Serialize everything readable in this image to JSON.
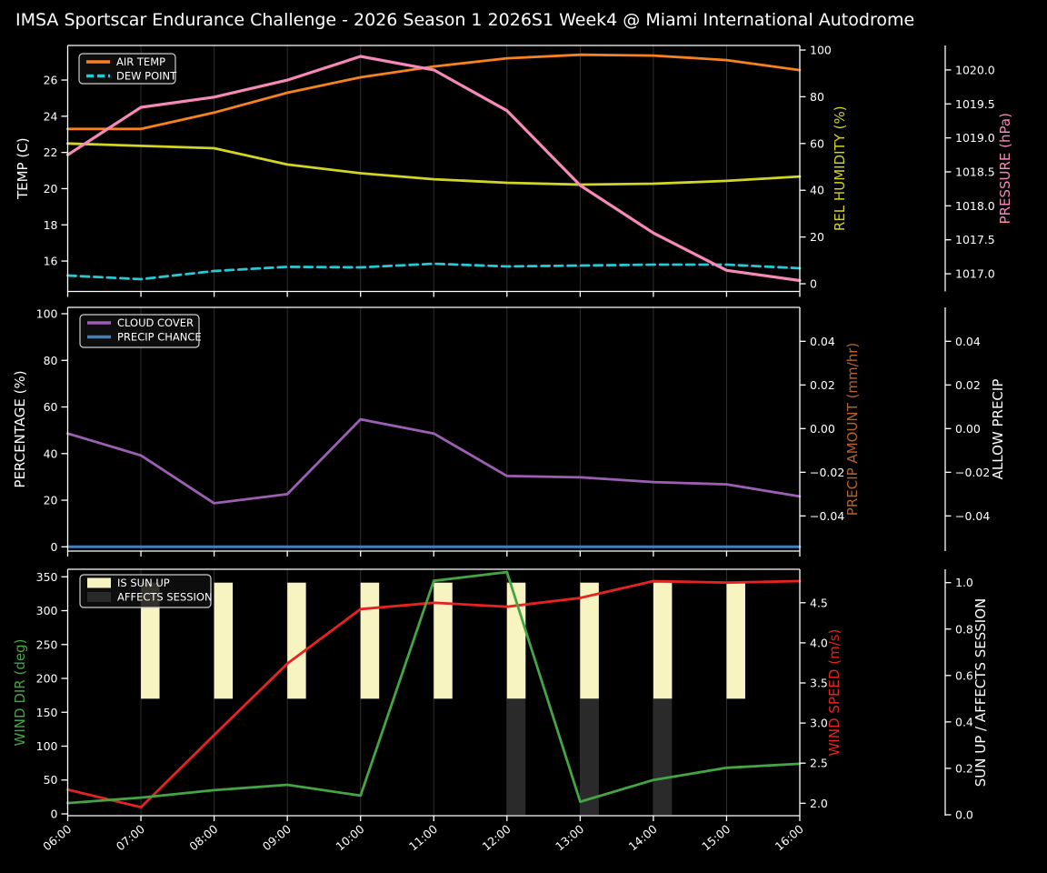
{
  "title": "IMSA Sportscar Endurance Challenge - 2026 Season 1 2026S1 Week4 @ Miami International Autodrome",
  "colors": {
    "background": "#000000",
    "text": "#ffffff",
    "grid": "#2f2f2f",
    "spine": "#ffffff",
    "air_temp": "#f8821f",
    "dew_point": "#29c7d2",
    "rel_humidity": "#d2d426",
    "pressure": "#f589b8",
    "cloud_cover": "#9d5fb4",
    "precip_chance": "#4080bf",
    "precip_amount_label": "#b4632c",
    "wind_dir": "#44a544",
    "wind_speed": "#e62222",
    "sun_up_bar": "#f7f4c2",
    "affects_session_bar": "#2a2a2a",
    "legend_border": "#cfcfcf"
  },
  "x_labels": [
    "06:00",
    "07:00",
    "08:00",
    "09:00",
    "10:00",
    "11:00",
    "12:00",
    "13:00",
    "14:00",
    "15:00",
    "16:00"
  ],
  "chart_data": [
    {
      "type": "line",
      "name": "temperature-humidity-pressure",
      "x": [
        "06:00",
        "07:00",
        "08:00",
        "09:00",
        "10:00",
        "11:00",
        "12:00",
        "13:00",
        "14:00",
        "15:00",
        "16:00"
      ],
      "grid": "vertical",
      "legend_position": "upper left",
      "axes": {
        "left": {
          "label": "TEMP (C)",
          "color": "#ffffff",
          "ticks": [
            16,
            18,
            20,
            22,
            24,
            26
          ],
          "ylim": [
            14.32,
            27.91
          ],
          "format": "int"
        },
        "right1": {
          "label": "REL HUMIDITY (%)",
          "color": "#d2d426",
          "ticks": [
            0,
            20,
            40,
            60,
            80,
            100
          ],
          "ylim": [
            -3.3,
            101.95
          ],
          "format": "int"
        },
        "right2": {
          "label": "PRESSURE (hPa)",
          "color": "#f589b8",
          "ticks": [
            1017.0,
            1017.5,
            1018.0,
            1018.5,
            1019.0,
            1019.5,
            1020.0
          ],
          "ylim": [
            1016.74,
            1020.36
          ],
          "format": "1dp"
        }
      },
      "series": [
        {
          "name": "AIR TEMP",
          "axis": "left",
          "color": "#f8821f",
          "dash": false,
          "width": 2.8,
          "legend": true,
          "values": [
            23.3,
            23.3,
            24.2,
            25.3,
            26.15,
            26.75,
            27.2,
            27.4,
            27.35,
            27.1,
            26.55
          ]
        },
        {
          "name": "DEW POINT",
          "axis": "left",
          "color": "#29c7d2",
          "dash": true,
          "width": 2.8,
          "legend": true,
          "values": [
            15.2,
            15.0,
            15.45,
            15.68,
            15.65,
            15.85,
            15.7,
            15.75,
            15.8,
            15.8,
            15.6
          ]
        },
        {
          "name": "REL HUMIDITY",
          "axis": "right1",
          "color": "#d2d426",
          "dash": false,
          "width": 2.8,
          "legend": false,
          "values": [
            60.0,
            59.0,
            58.0,
            51.0,
            47.3,
            44.7,
            43.2,
            42.4,
            42.8,
            44.0,
            45.9
          ]
        },
        {
          "name": "PRESSURE",
          "axis": "right2",
          "color": "#f589b8",
          "dash": false,
          "width": 3.2,
          "legend": false,
          "values": [
            1018.75,
            1019.45,
            1019.6,
            1019.85,
            1020.2,
            1020.0,
            1019.4,
            1018.3,
            1017.6,
            1017.05,
            1016.9
          ]
        }
      ]
    },
    {
      "type": "line",
      "name": "cloud-precipitation",
      "x": [
        "06:00",
        "07:00",
        "08:00",
        "09:00",
        "10:00",
        "11:00",
        "12:00",
        "13:00",
        "14:00",
        "15:00",
        "16:00"
      ],
      "grid": "vertical",
      "legend_position": "upper left",
      "axes": {
        "left": {
          "label": "PERCENTAGE (%)",
          "color": "#ffffff",
          "ticks": [
            0,
            20,
            40,
            60,
            80,
            100
          ],
          "ylim": [
            -1.83,
            102.73
          ],
          "format": "int"
        },
        "right1": {
          "label": "PRECIP AMOUNT (mm/hr)",
          "color": "#b4632c",
          "ticks": [
            0.04,
            0.02,
            0.0,
            -0.02,
            -0.04
          ],
          "ylim": [
            -0.0561,
            0.05554
          ],
          "format": "2dp"
        },
        "right2": {
          "label": "ALLOW PRECIP",
          "color": "#ffffff",
          "ticks": [
            0.04,
            0.02,
            0.0,
            -0.02,
            -0.04
          ],
          "ylim": [
            -0.0561,
            0.05554
          ],
          "format": "2dp"
        }
      },
      "series": [
        {
          "name": "CLOUD COVER",
          "axis": "left",
          "color": "#9d5fb4",
          "dash": false,
          "width": 2.8,
          "legend": true,
          "values": [
            48.6,
            39.2,
            18.7,
            22.6,
            54.7,
            48.6,
            30.4,
            29.8,
            27.8,
            26.8,
            21.6
          ]
        },
        {
          "name": "PRECIP CHANCE",
          "axis": "left",
          "color": "#4080bf",
          "dash": false,
          "width": 3.0,
          "legend": true,
          "values": [
            0,
            0,
            0,
            0,
            0,
            0,
            0,
            0,
            0,
            0,
            0
          ]
        }
      ]
    },
    {
      "type": "line+bar",
      "name": "wind-sun-session",
      "x": [
        "06:00",
        "07:00",
        "08:00",
        "09:00",
        "10:00",
        "11:00",
        "12:00",
        "13:00",
        "14:00",
        "15:00",
        "16:00"
      ],
      "grid": "vertical",
      "legend_position": "upper left",
      "axes": {
        "left": {
          "label": "WIND DIR (deg)",
          "color": "#44a544",
          "ticks": [
            0,
            50,
            100,
            150,
            200,
            250,
            300,
            350
          ],
          "ylim": [
            -2.7,
            361.1
          ],
          "format": "int"
        },
        "right1": {
          "label": "WIND SPEED (m/s)",
          "color": "#e62222",
          "ticks": [
            2.0,
            2.5,
            3.0,
            3.5,
            4.0,
            4.5
          ],
          "ylim": [
            1.845,
            4.917
          ],
          "format": "1dp"
        },
        "right2": {
          "label": "SUN UP / AFFECTS SESSION",
          "color": "#ffffff",
          "ticks": [
            0.0,
            0.2,
            0.4,
            0.6,
            0.8,
            1.0
          ],
          "ylim": [
            -0.004,
            1.0576
          ],
          "format": "1dp"
        }
      },
      "bars": [
        {
          "name": "IS SUN UP",
          "axis": "right2",
          "color": "#f7f4c2",
          "bar_bottom": 0.5,
          "bar_top": 1.0,
          "legend": true,
          "values": [
            0,
            1,
            1,
            1,
            1,
            1,
            1,
            1,
            1,
            1,
            0
          ]
        },
        {
          "name": "AFFECTS SESSION",
          "axis": "right2",
          "color": "#2a2a2a",
          "bar_bottom": 0.0,
          "bar_top": 0.5,
          "legend": true,
          "values": [
            0,
            0,
            0,
            0,
            0,
            0,
            1,
            1,
            1,
            0,
            0
          ]
        }
      ],
      "series": [
        {
          "name": "WIND SPEED",
          "axis": "right1",
          "color": "#e62222",
          "dash": false,
          "width": 2.8,
          "legend": false,
          "values": [
            2.17,
            1.95,
            2.85,
            3.74,
            4.42,
            4.5,
            4.45,
            4.56,
            4.77,
            4.75,
            4.77
          ]
        },
        {
          "name": "WIND DIR",
          "axis": "left",
          "color": "#44a544",
          "dash": false,
          "width": 2.8,
          "legend": false,
          "values": [
            16,
            24,
            35,
            43,
            27,
            344,
            357,
            18,
            50,
            68,
            74
          ]
        }
      ]
    }
  ]
}
